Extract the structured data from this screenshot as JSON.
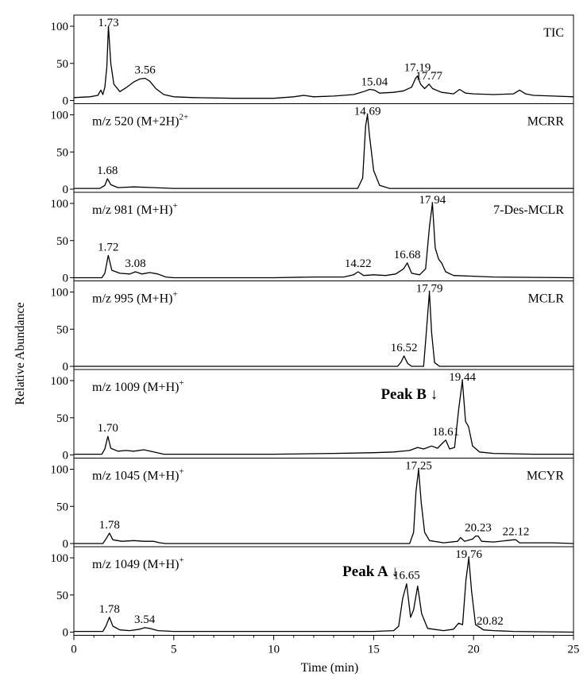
{
  "chart_data": {
    "type": "line",
    "xlabel": "Time (min)",
    "ylabel": "Relative Abundance",
    "xlim": [
      0,
      25
    ],
    "ylim": [
      0,
      100
    ],
    "x_ticks": [
      0,
      5,
      10,
      15,
      20,
      25
    ],
    "y_ticks": [
      0,
      50,
      100
    ],
    "grid": false,
    "panels": [
      {
        "label": "",
        "name": "TIC",
        "peak_labels": [
          {
            "x": 1.73,
            "y": 100,
            "text": "1.73"
          },
          {
            "x": 3.56,
            "y": 30,
            "text": "3.56"
          },
          {
            "x": 15.04,
            "y": 14,
            "text": "15.04"
          },
          {
            "x": 17.19,
            "y": 33,
            "text": "17.19"
          },
          {
            "x": 17.77,
            "y": 22,
            "text": "17.77"
          }
        ],
        "points": [
          [
            0,
            4
          ],
          [
            0.8,
            5
          ],
          [
            1.2,
            7
          ],
          [
            1.35,
            14
          ],
          [
            1.45,
            8
          ],
          [
            1.55,
            18
          ],
          [
            1.65,
            45
          ],
          [
            1.73,
            100
          ],
          [
            1.85,
            50
          ],
          [
            2.0,
            22
          ],
          [
            2.3,
            12
          ],
          [
            2.6,
            17
          ],
          [
            3.0,
            25
          ],
          [
            3.3,
            29
          ],
          [
            3.56,
            30
          ],
          [
            3.8,
            26
          ],
          [
            4.1,
            16
          ],
          [
            4.5,
            8
          ],
          [
            5,
            5
          ],
          [
            6,
            4
          ],
          [
            8,
            3
          ],
          [
            10,
            3
          ],
          [
            11,
            5
          ],
          [
            11.5,
            7
          ],
          [
            12,
            5
          ],
          [
            13,
            6
          ],
          [
            14,
            8
          ],
          [
            14.5,
            12
          ],
          [
            14.8,
            15
          ],
          [
            15.04,
            14
          ],
          [
            15.3,
            10
          ],
          [
            16,
            11
          ],
          [
            16.5,
            13
          ],
          [
            16.9,
            18
          ],
          [
            17.1,
            30
          ],
          [
            17.19,
            33
          ],
          [
            17.35,
            22
          ],
          [
            17.55,
            16
          ],
          [
            17.77,
            22
          ],
          [
            17.95,
            16
          ],
          [
            18.4,
            11
          ],
          [
            19,
            9
          ],
          [
            19.3,
            15
          ],
          [
            19.6,
            10
          ],
          [
            20,
            9
          ],
          [
            21,
            8
          ],
          [
            22,
            9
          ],
          [
            22.3,
            14
          ],
          [
            22.6,
            9
          ],
          [
            23,
            7
          ],
          [
            24,
            6
          ],
          [
            25,
            5
          ]
        ]
      },
      {
        "label": "m/z 520 (M+2H)",
        "charge": "2+",
        "name": "MCRR",
        "peak_labels": [
          {
            "x": 1.68,
            "y": 14,
            "text": "1.68"
          },
          {
            "x": 14.69,
            "y": 100,
            "text": "14.69"
          }
        ],
        "points": [
          [
            0,
            1
          ],
          [
            1.3,
            1
          ],
          [
            1.55,
            5
          ],
          [
            1.68,
            14
          ],
          [
            1.85,
            6
          ],
          [
            2.2,
            2
          ],
          [
            3,
            3
          ],
          [
            4,
            2
          ],
          [
            5,
            1
          ],
          [
            14.2,
            1
          ],
          [
            14.45,
            15
          ],
          [
            14.6,
            85
          ],
          [
            14.69,
            100
          ],
          [
            14.8,
            70
          ],
          [
            15.0,
            25
          ],
          [
            15.3,
            5
          ],
          [
            15.8,
            1
          ],
          [
            16.5,
            1
          ],
          [
            25,
            1
          ]
        ]
      },
      {
        "label": "m/z 981 (M+H)",
        "charge": "+",
        "name": "7-Des-MCLR",
        "peak_labels": [
          {
            "x": 1.72,
            "y": 30,
            "text": "1.72"
          },
          {
            "x": 3.08,
            "y": 8,
            "text": "3.08"
          },
          {
            "x": 14.22,
            "y": 8,
            "text": "14.22"
          },
          {
            "x": 16.68,
            "y": 20,
            "text": "16.68"
          },
          {
            "x": 17.94,
            "y": 100,
            "text": "17.94"
          }
        ],
        "points": [
          [
            0,
            0
          ],
          [
            1.4,
            0
          ],
          [
            1.55,
            6
          ],
          [
            1.72,
            30
          ],
          [
            1.9,
            10
          ],
          [
            2.3,
            6
          ],
          [
            2.8,
            5
          ],
          [
            3.08,
            8
          ],
          [
            3.4,
            5
          ],
          [
            3.8,
            7
          ],
          [
            4.2,
            5
          ],
          [
            4.6,
            1
          ],
          [
            5,
            0
          ],
          [
            10,
            0
          ],
          [
            12,
            1
          ],
          [
            13.5,
            1
          ],
          [
            14.0,
            4
          ],
          [
            14.22,
            8
          ],
          [
            14.5,
            3
          ],
          [
            15.0,
            4
          ],
          [
            15.6,
            3
          ],
          [
            16.1,
            5
          ],
          [
            16.5,
            12
          ],
          [
            16.68,
            20
          ],
          [
            16.9,
            6
          ],
          [
            17.3,
            4
          ],
          [
            17.6,
            12
          ],
          [
            17.8,
            70
          ],
          [
            17.94,
            100
          ],
          [
            18.08,
            40
          ],
          [
            18.25,
            25
          ],
          [
            18.4,
            20
          ],
          [
            18.6,
            8
          ],
          [
            19,
            3
          ],
          [
            20,
            2
          ],
          [
            21,
            1
          ],
          [
            25,
            0
          ]
        ]
      },
      {
        "label": "m/z 995 (M+H)",
        "charge": "+",
        "name": "MCLR",
        "peak_labels": [
          {
            "x": 16.52,
            "y": 14,
            "text": "16.52"
          },
          {
            "x": 17.79,
            "y": 100,
            "text": "17.79"
          }
        ],
        "points": [
          [
            0,
            0
          ],
          [
            16.2,
            0
          ],
          [
            16.38,
            6
          ],
          [
            16.52,
            14
          ],
          [
            16.7,
            4
          ],
          [
            16.9,
            0
          ],
          [
            17.5,
            0
          ],
          [
            17.62,
            40
          ],
          [
            17.79,
            100
          ],
          [
            17.9,
            45
          ],
          [
            18.05,
            5
          ],
          [
            18.3,
            0
          ],
          [
            25,
            0
          ]
        ]
      },
      {
        "label": "m/z 1009 (M+H)",
        "charge": "+",
        "name": "",
        "peak_labels": [
          {
            "x": 1.7,
            "y": 25,
            "text": "1.70"
          },
          {
            "x": 18.61,
            "y": 20,
            "text": "18.61"
          },
          {
            "x": 19.44,
            "y": 100,
            "text": "19.44"
          }
        ],
        "markers": [
          {
            "x": 18.61,
            "text": "Peak B ↓"
          }
        ],
        "points": [
          [
            0,
            1
          ],
          [
            1.4,
            1
          ],
          [
            1.55,
            8
          ],
          [
            1.7,
            25
          ],
          [
            1.85,
            9
          ],
          [
            2.2,
            5
          ],
          [
            2.6,
            6
          ],
          [
            3.0,
            5
          ],
          [
            3.5,
            7
          ],
          [
            4.0,
            4
          ],
          [
            4.5,
            1
          ],
          [
            5,
            1
          ],
          [
            10,
            1
          ],
          [
            13,
            2
          ],
          [
            15,
            3
          ],
          [
            16,
            4
          ],
          [
            16.8,
            6
          ],
          [
            17.2,
            10
          ],
          [
            17.5,
            8
          ],
          [
            17.9,
            12
          ],
          [
            18.2,
            9
          ],
          [
            18.45,
            16
          ],
          [
            18.61,
            20
          ],
          [
            18.8,
            8
          ],
          [
            19.05,
            10
          ],
          [
            19.25,
            60
          ],
          [
            19.44,
            100
          ],
          [
            19.6,
            45
          ],
          [
            19.75,
            38
          ],
          [
            19.95,
            12
          ],
          [
            20.3,
            4
          ],
          [
            21,
            2
          ],
          [
            23,
            1
          ],
          [
            25,
            1
          ]
        ]
      },
      {
        "label": "m/z 1045 (M+H)",
        "charge": "+",
        "name": "MCYR",
        "peak_labels": [
          {
            "x": 1.78,
            "y": 14,
            "text": "1.78"
          },
          {
            "x": 17.25,
            "y": 100,
            "text": "17.25"
          },
          {
            "x": 20.23,
            "y": 10,
            "text": "20.23"
          },
          {
            "x": 22.12,
            "y": 5,
            "text": "22.12"
          }
        ],
        "points": [
          [
            0,
            0
          ],
          [
            1.45,
            0
          ],
          [
            1.6,
            6
          ],
          [
            1.78,
            14
          ],
          [
            1.95,
            5
          ],
          [
            2.4,
            3
          ],
          [
            3.0,
            4
          ],
          [
            3.5,
            3
          ],
          [
            4.0,
            3
          ],
          [
            4.3,
            1
          ],
          [
            4.6,
            0
          ],
          [
            16.8,
            0
          ],
          [
            17.0,
            15
          ],
          [
            17.12,
            70
          ],
          [
            17.25,
            100
          ],
          [
            17.38,
            55
          ],
          [
            17.55,
            15
          ],
          [
            17.8,
            4
          ],
          [
            18.5,
            1
          ],
          [
            19.2,
            3
          ],
          [
            19.35,
            8
          ],
          [
            19.55,
            3
          ],
          [
            19.95,
            6
          ],
          [
            20.1,
            10
          ],
          [
            20.23,
            10
          ],
          [
            20.4,
            3
          ],
          [
            21,
            2
          ],
          [
            22.0,
            5
          ],
          [
            22.12,
            5
          ],
          [
            22.3,
            1
          ],
          [
            23,
            1
          ],
          [
            24,
            1
          ],
          [
            25,
            0
          ]
        ]
      },
      {
        "label": "m/z 1049 (M+H)",
        "charge": "+",
        "name": "",
        "peak_labels": [
          {
            "x": 1.78,
            "y": 20,
            "text": "1.78"
          },
          {
            "x": 3.54,
            "y": 6,
            "text": "3.54"
          },
          {
            "x": 16.65,
            "y": 65,
            "text": "16.65"
          },
          {
            "x": 19.76,
            "y": 100,
            "text": "19.76"
          },
          {
            "x": 20.82,
            "y": 4,
            "text": "20.82"
          }
        ],
        "markers": [
          {
            "x": 16.65,
            "text": "Peak A ↓"
          }
        ],
        "points": [
          [
            0,
            1
          ],
          [
            1.45,
            1
          ],
          [
            1.6,
            8
          ],
          [
            1.78,
            20
          ],
          [
            1.95,
            8
          ],
          [
            2.3,
            3
          ],
          [
            2.8,
            2
          ],
          [
            3.3,
            4
          ],
          [
            3.54,
            6
          ],
          [
            3.8,
            5
          ],
          [
            4.2,
            2
          ],
          [
            5,
            1
          ],
          [
            15,
            1
          ],
          [
            16.0,
            2
          ],
          [
            16.25,
            8
          ],
          [
            16.45,
            45
          ],
          [
            16.65,
            65
          ],
          [
            16.85,
            20
          ],
          [
            17.0,
            30
          ],
          [
            17.2,
            62
          ],
          [
            17.4,
            25
          ],
          [
            17.7,
            5
          ],
          [
            18.5,
            2
          ],
          [
            19.0,
            4
          ],
          [
            19.25,
            12
          ],
          [
            19.45,
            10
          ],
          [
            19.62,
            70
          ],
          [
            19.76,
            100
          ],
          [
            19.9,
            55
          ],
          [
            20.1,
            10
          ],
          [
            20.5,
            3
          ],
          [
            21,
            2
          ],
          [
            22,
            1
          ],
          [
            25,
            0
          ]
        ]
      }
    ]
  }
}
